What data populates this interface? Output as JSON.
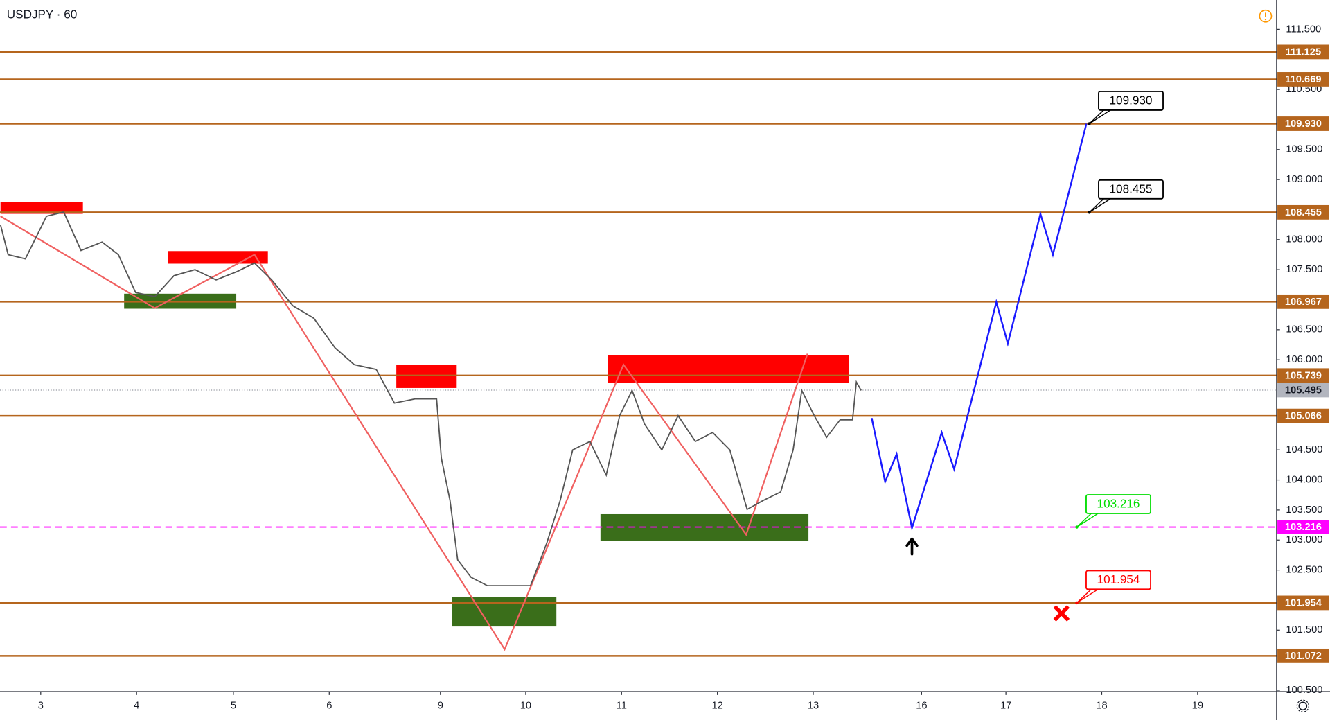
{
  "chart_data": {
    "type": "line",
    "title": "USDJPY · 60",
    "color": "#555555",
    "x": [
      -0.42,
      -0.34,
      -0.16,
      0.06,
      0.24,
      0.42,
      0.64,
      0.81,
      0.99,
      1.19,
      1.39,
      1.61,
      1.83,
      2.05,
      2.23,
      2.41,
      2.63,
      2.85,
      3.07,
      3.27,
      3.5,
      3.69,
      3.91,
      4.13,
      4.18,
      4.27,
      4.35,
      4.49,
      4.66,
      4.88,
      5.11,
      5.28,
      5.42,
      5.55,
      5.73,
      5.9,
      6.04,
      6.17,
      6.3,
      6.48,
      6.65,
      6.83,
      7.01,
      7.19,
      7.37,
      7.54,
      7.72,
      7.85,
      7.94,
      8.07,
      8.2,
      8.34,
      8.47,
      8.51,
      8.56
    ],
    "values": [
      108.25,
      107.75,
      107.68,
      108.39,
      108.46,
      107.82,
      107.96,
      107.75,
      107.12,
      107.05,
      107.4,
      107.5,
      107.33,
      107.47,
      107.61,
      107.33,
      106.9,
      106.69,
      106.2,
      105.92,
      105.84,
      105.28,
      105.35,
      105.35,
      104.36,
      103.66,
      102.67,
      102.38,
      102.24,
      102.24,
      102.24,
      102.95,
      103.66,
      104.5,
      104.64,
      104.08,
      105.07,
      105.49,
      104.93,
      104.5,
      105.07,
      104.64,
      104.79,
      104.5,
      103.51,
      103.66,
      103.8,
      104.5,
      105.49,
      105.07,
      104.71,
      105.0,
      105.0,
      105.63,
      105.49
    ],
    "xlim": [
      -0.425,
      12.894
    ],
    "ylim": [
      100.477,
      111.989
    ],
    "xticks": [
      {
        "value": 0,
        "label": "3"
      },
      {
        "value": 1,
        "label": "4"
      },
      {
        "value": 2.01,
        "label": "5"
      },
      {
        "value": 3.01,
        "label": "6"
      },
      {
        "value": 4.17,
        "label": "9"
      },
      {
        "value": 5.06,
        "label": "10"
      },
      {
        "value": 6.06,
        "label": "11"
      },
      {
        "value": 7.06,
        "label": "12"
      },
      {
        "value": 8.06,
        "label": "13"
      },
      {
        "value": 9.19,
        "label": "16"
      },
      {
        "value": 10.07,
        "label": "17"
      },
      {
        "value": 11.07,
        "label": "18"
      },
      {
        "value": 12.07,
        "label": "19"
      }
    ],
    "yticks": [
      {
        "value": 111.5,
        "label": "111.500"
      },
      {
        "value": 110.5,
        "label": "110.500"
      },
      {
        "value": 109.5,
        "label": "109.500"
      },
      {
        "value": 109,
        "label": "109.000"
      },
      {
        "value": 108,
        "label": "108.000"
      },
      {
        "value": 107.5,
        "label": "107.500"
      },
      {
        "value": 106.5,
        "label": "106.500"
      },
      {
        "value": 106,
        "label": "106.000"
      },
      {
        "value": 104.5,
        "label": "104.500"
      },
      {
        "value": 104,
        "label": "104.000"
      },
      {
        "value": 103.5,
        "label": "103.500"
      },
      {
        "value": 103,
        "label": "103.000"
      },
      {
        "value": 102.5,
        "label": "102.500"
      },
      {
        "value": 101.5,
        "label": "101.500"
      },
      {
        "value": 100.5,
        "label": "100.500"
      }
    ],
    "level_color": "#b5651d",
    "levels": [
      {
        "value": 111.125,
        "label": "111.125"
      },
      {
        "value": 110.669,
        "label": "110.669"
      },
      {
        "value": 109.93,
        "label": "109.930"
      },
      {
        "value": 108.455,
        "label": "108.455"
      },
      {
        "value": 106.967,
        "label": "106.967"
      },
      {
        "value": 105.739,
        "label": "105.739"
      },
      {
        "value": 105.066,
        "label": "105.066"
      },
      {
        "value": 101.954,
        "label": "101.954"
      },
      {
        "value": 101.072,
        "label": "101.072"
      }
    ],
    "target_level": {
      "value": 103.216,
      "label": "103.216",
      "color": "#ff00ff"
    },
    "current_price": {
      "value": 105.495,
      "label": "105.495",
      "color": "#b2b5be"
    },
    "zones": [
      {
        "x": [
          -0.42,
          0.44
        ],
        "y": [
          108.43,
          108.63
        ],
        "color": "#ff0000"
      },
      {
        "x": [
          1.33,
          2.37
        ],
        "y": [
          107.6,
          107.81
        ],
        "color": "#ff0000"
      },
      {
        "x": [
          0.87,
          2.04
        ],
        "y": [
          106.85,
          107.1
        ],
        "color": "#3a6e1a"
      },
      {
        "x": [
          3.71,
          4.34
        ],
        "y": [
          105.53,
          105.92
        ],
        "color": "#ff0000"
      },
      {
        "x": [
          4.29,
          5.38
        ],
        "y": [
          101.56,
          102.05
        ],
        "color": "#3a6e1a"
      },
      {
        "x": [
          5.92,
          8.43
        ],
        "y": [
          105.62,
          106.08
        ],
        "color": "#ff0000"
      },
      {
        "x": [
          5.84,
          8.01
        ],
        "y": [
          102.99,
          103.43
        ],
        "color": "#3a6e1a"
      }
    ],
    "zigzag": {
      "x": [
        -0.42,
        1.19,
        2.23,
        4.84,
        6.08,
        7.36,
        8.0
      ],
      "values": [
        108.39,
        106.86,
        107.75,
        101.18,
        105.92,
        103.09,
        106.1
      ],
      "color": "#f06060"
    },
    "projection": {
      "x": [
        8.67,
        8.81,
        8.93,
        9.09,
        9.4,
        9.53,
        9.97,
        10.09,
        10.43,
        10.56,
        10.91
      ],
      "values": [
        105.03,
        103.97,
        104.43,
        103.2,
        104.79,
        104.18,
        106.96,
        106.27,
        108.43,
        107.75,
        109.93
      ],
      "color": "#1a1aff"
    },
    "callouts": [
      {
        "x": 10.94,
        "value": 109.93,
        "label": "109.930",
        "color": "#000000"
      },
      {
        "x": 10.94,
        "value": 108.455,
        "label": "108.455",
        "color": "#000000"
      },
      {
        "x": 10.81,
        "value": 103.216,
        "label": "103.216",
        "color": "#00dd00"
      },
      {
        "x": 10.81,
        "value": 101.954,
        "label": "101.954",
        "color": "#ff0000"
      }
    ],
    "stop_marker": {
      "x": 10.65,
      "value": 101.78,
      "color": "#ff0000"
    },
    "entry_arrow": {
      "x": 9.09,
      "value": 102.85,
      "color": "#000000"
    }
  }
}
